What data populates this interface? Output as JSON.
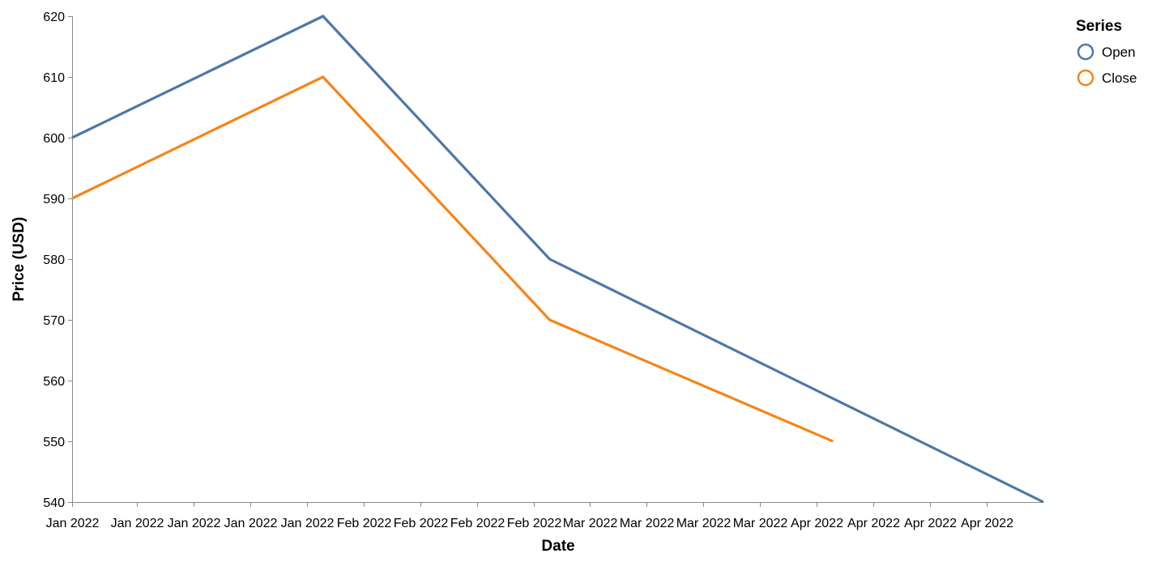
{
  "chart_data": {
    "type": "line",
    "xlabel": "Date",
    "ylabel": "Price (USD)",
    "ylim": [
      540,
      620
    ],
    "y_ticks": [
      540,
      550,
      560,
      570,
      580,
      590,
      600,
      610,
      620
    ],
    "x_range": [
      "2022-01-01",
      "2022-05-01"
    ],
    "x_ticks": [
      {
        "date": "2022-01-01",
        "label": "Jan 2022"
      },
      {
        "date": "2022-01-09",
        "label": "Jan 2022"
      },
      {
        "date": "2022-01-16",
        "label": "Jan 2022"
      },
      {
        "date": "2022-01-23",
        "label": "Jan 2022"
      },
      {
        "date": "2022-01-30",
        "label": "Jan 2022"
      },
      {
        "date": "2022-02-06",
        "label": "Feb 2022"
      },
      {
        "date": "2022-02-13",
        "label": "Feb 2022"
      },
      {
        "date": "2022-02-20",
        "label": "Feb 2022"
      },
      {
        "date": "2022-02-27",
        "label": "Feb 2022"
      },
      {
        "date": "2022-03-06",
        "label": "Mar 2022"
      },
      {
        "date": "2022-03-13",
        "label": "Mar 2022"
      },
      {
        "date": "2022-03-20",
        "label": "Mar 2022"
      },
      {
        "date": "2022-03-27",
        "label": "Mar 2022"
      },
      {
        "date": "2022-04-03",
        "label": "Apr 2022"
      },
      {
        "date": "2022-04-10",
        "label": "Apr 2022"
      },
      {
        "date": "2022-04-17",
        "label": "Apr 2022"
      },
      {
        "date": "2022-04-24",
        "label": "Apr 2022"
      }
    ],
    "grid": false,
    "legend": {
      "title": "Series",
      "placement": "top-right"
    },
    "series": [
      {
        "name": "Open",
        "color": "#4c78a8",
        "points": [
          {
            "x": "2022-01-01",
            "y": 600
          },
          {
            "x": "2022-02-01",
            "y": 620
          },
          {
            "x": "2022-03-01",
            "y": 580
          },
          {
            "x": "2022-05-01",
            "y": 540
          }
        ]
      },
      {
        "name": "Close",
        "color": "#f58518",
        "points": [
          {
            "x": "2022-01-01",
            "y": 590
          },
          {
            "x": "2022-02-01",
            "y": 610
          },
          {
            "x": "2022-03-01",
            "y": 570
          },
          {
            "x": "2022-04-05",
            "y": 550
          }
        ]
      }
    ]
  }
}
